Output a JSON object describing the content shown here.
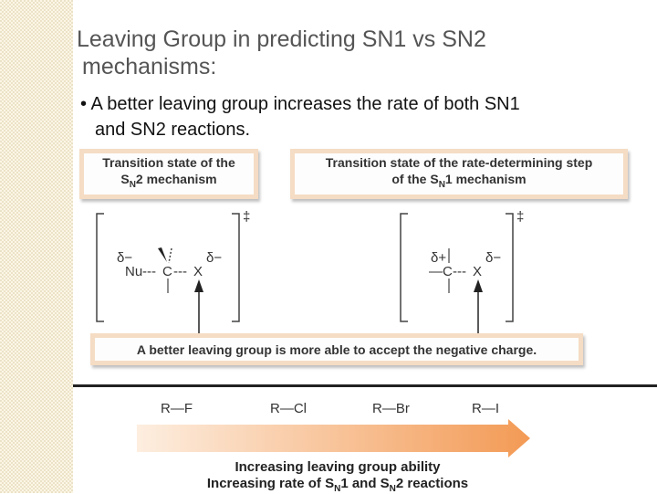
{
  "slide": {
    "title_line1": "Leaving Group in predicting SN1 vs SN2",
    "title_line2": "mechanisms:",
    "bullet_line1": "• A better leaving group increases the rate of both SN1",
    "bullet_line2": "and SN2 reactions."
  },
  "figure": {
    "sn2_box_line1": "Transition state of the",
    "sn2_box_line2_pre": "S",
    "sn2_box_line2_sub": "N",
    "sn2_box_line2_post": "2 mechanism",
    "sn1_box_line1": "Transition state of the rate-determining step",
    "sn1_box_line2_pre": "of the S",
    "sn1_box_line2_sub": "N",
    "sn1_box_line2_post": "1 mechanism",
    "charge_box": "A better leaving group is more able to accept the negative charge.",
    "sn2_structure": {
      "delta_left": "δ−",
      "delta_right": "δ−",
      "nucleophile": "Nu",
      "bond1": "---",
      "carbon": "C",
      "bond2": "---",
      "leaving_group": "X",
      "dagger": "‡"
    },
    "sn1_structure": {
      "delta_left": "δ+",
      "delta_right": "δ−",
      "carbon": "—C",
      "bond": "---",
      "leaving_group": "X",
      "dagger": "‡"
    },
    "leaving_groups": [
      "R—F",
      "R—Cl",
      "R—Br",
      "R—I"
    ],
    "arrow_label1": "Increasing leaving group ability",
    "arrow_label2_a": "Increasing rate of S",
    "arrow_label2_sub1": "N",
    "arrow_label2_b": "1 and S",
    "arrow_label2_sub2": "N",
    "arrow_label2_c": "2 reactions"
  }
}
